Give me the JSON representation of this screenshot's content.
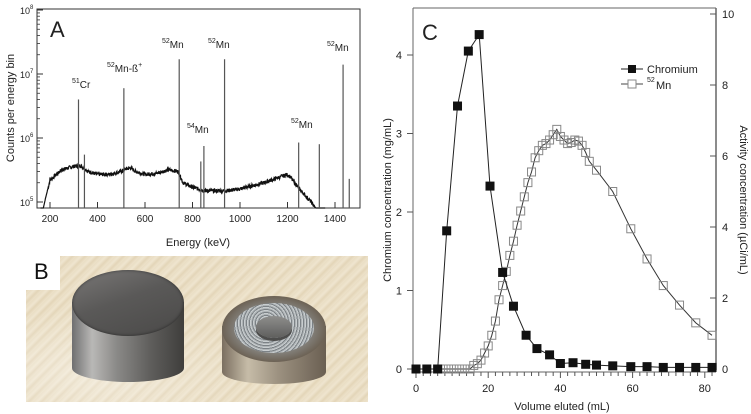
{
  "figure": {
    "panels": [
      "A",
      "B",
      "C"
    ]
  },
  "panelA": {
    "label": "A",
    "ylabel": "Counts per energy bin",
    "xlabel": "Energy (keV)",
    "yticks": [
      {
        "base": "10",
        "exp": "8"
      },
      {
        "base": "10",
        "exp": "7"
      },
      {
        "base": "10",
        "exp": "6"
      },
      {
        "base": "10",
        "exp": "5"
      }
    ],
    "xticks": [
      "200",
      "400",
      "600",
      "800",
      "1000",
      "1200",
      "1400"
    ],
    "annotations": [
      {
        "sup": "51",
        "text": "Cr"
      },
      {
        "sup": "52",
        "text": "Mn-ß",
        "sup2": "+"
      },
      {
        "sup": "52",
        "text": "Mn"
      },
      {
        "sup": "52",
        "text": "Mn"
      },
      {
        "sup": "54",
        "text": "Mn"
      },
      {
        "sup": "52",
        "text": "Mn"
      },
      {
        "sup": "52",
        "text": "Mn"
      }
    ]
  },
  "panelB": {
    "label": "B",
    "description": "photo of two metal cylinders on textured cloth"
  },
  "panelC": {
    "label": "C",
    "ylabel_left": "Chromium concentration (mg/mL)",
    "ylabel_right": "Activity concentration (µCi/mL)",
    "xlabel": "Volume eluted (mL)",
    "xticks": [
      "0",
      "20",
      "40",
      "60",
      "80"
    ],
    "yticks_left": [
      "0",
      "1",
      "2",
      "3",
      "4"
    ],
    "yticks_right": [
      "0",
      "2",
      "4",
      "6",
      "8",
      "10"
    ],
    "legend": [
      {
        "name": "Chromium",
        "marker": "filled-square"
      },
      {
        "sup": "52",
        "name": "Mn",
        "marker": "open-square"
      }
    ]
  },
  "chart_data": [
    {
      "panel": "A",
      "type": "line",
      "title": "",
      "xlabel": "Energy (keV)",
      "ylabel": "Counts per energy bin",
      "yscale": "log",
      "xlim": [
        150,
        1500
      ],
      "ylim": [
        50000,
        100000000
      ],
      "x_ticks": [
        200,
        400,
        600,
        800,
        1000,
        1200,
        1400
      ],
      "y_ticks": [
        100000,
        1000000,
        10000000,
        100000000
      ],
      "peaks": [
        {
          "label": "51Cr",
          "energy_keV": 320,
          "counts": 4000000
        },
        {
          "label": "",
          "energy_keV": 345,
          "counts": 550000
        },
        {
          "label": "52Mn-β+",
          "energy_keV": 511,
          "counts": 6000000
        },
        {
          "label": "52Mn",
          "energy_keV": 744,
          "counts": 17000000
        },
        {
          "label": "",
          "energy_keV": 835,
          "counts": 430000
        },
        {
          "label": "54Mn",
          "energy_keV": 848,
          "counts": 750000
        },
        {
          "label": "52Mn",
          "energy_keV": 935,
          "counts": 17000000
        },
        {
          "label": "52Mn",
          "energy_keV": 1247,
          "counts": 850000
        },
        {
          "label": "",
          "energy_keV": 1334,
          "counts": 800000
        },
        {
          "label": "52Mn",
          "energy_keV": 1434,
          "counts": 14000000
        },
        {
          "label": "",
          "energy_keV": 1460,
          "counts": 230000
        }
      ],
      "continuum": {
        "x": [
          160,
          180,
          200,
          250,
          300,
          330,
          360,
          400,
          450,
          500,
          520,
          540,
          560,
          600,
          650,
          700,
          740,
          760,
          800,
          850,
          900,
          940,
          1000,
          1100,
          1200,
          1210,
          1250,
          1300,
          1340,
          1360
        ],
        "y": [
          50000,
          110000,
          220000,
          320000,
          360000,
          370000,
          300000,
          270000,
          270000,
          300000,
          330000,
          340000,
          300000,
          270000,
          280000,
          320000,
          300000,
          200000,
          170000,
          150000,
          150000,
          150000,
          160000,
          200000,
          270000,
          250000,
          160000,
          100000,
          60000,
          50000
        ]
      },
      "grid": false,
      "legend": null
    },
    {
      "panel": "C",
      "type": "line",
      "title": "",
      "xlabel": "Volume eluted (mL)",
      "ylabel": "Chromium concentration (mg/mL)",
      "ylabel_right": "Activity concentration (µCi/mL)",
      "xlim": [
        -2,
        83
      ],
      "ylim": [
        -0.05,
        4.6
      ],
      "ylim_right": [
        -0.1,
        10.2
      ],
      "grid": false,
      "legend_position": "upper right",
      "series": [
        {
          "name": "Chromium",
          "axis": "left",
          "marker": "filled-square",
          "x": [
            0,
            3,
            6,
            8.5,
            11.5,
            14.5,
            17.5,
            20.5,
            24,
            27,
            30.5,
            33.5,
            37,
            40,
            43.5,
            47,
            50,
            54.5,
            59.5,
            64,
            68.5,
            73,
            77.5,
            82
          ],
          "y": [
            0,
            0,
            0,
            1.76,
            3.35,
            4.05,
            4.26,
            2.33,
            1.23,
            0.8,
            0.43,
            0.26,
            0.18,
            0.07,
            0.08,
            0.06,
            0.05,
            0.04,
            0.03,
            0.03,
            0.02,
            0.02,
            0.02,
            0.02
          ]
        },
        {
          "name": "52Mn",
          "axis": "right",
          "marker": "open-square",
          "x": [
            6,
            7.5,
            9,
            10.5,
            12,
            13.5,
            15,
            16,
            17,
            18,
            19,
            20,
            21,
            22,
            23,
            24,
            25,
            26,
            27,
            28,
            29,
            30,
            31,
            32,
            33,
            34,
            35,
            36,
            37,
            38,
            39,
            40,
            41,
            42,
            43,
            44,
            45,
            46,
            47,
            48,
            50,
            54.5,
            59.5,
            64,
            68.5,
            73,
            77.5,
            82
          ],
          "y": [
            0,
            0,
            0,
            0,
            0,
            0,
            0,
            0.1,
            0.15,
            0.25,
            0.45,
            0.65,
            0.95,
            1.35,
            1.95,
            2.35,
            2.75,
            3.2,
            3.6,
            4.05,
            4.45,
            4.85,
            5.25,
            5.55,
            5.95,
            6.15,
            6.3,
            6.35,
            6.45,
            6.6,
            6.75,
            6.55,
            6.45,
            6.35,
            6.38,
            6.45,
            6.42,
            6.3,
            6.1,
            5.85,
            5.6,
            5.0,
            3.95,
            3.1,
            2.35,
            1.8,
            1.3,
            0.95
          ]
        }
      ]
    }
  ]
}
